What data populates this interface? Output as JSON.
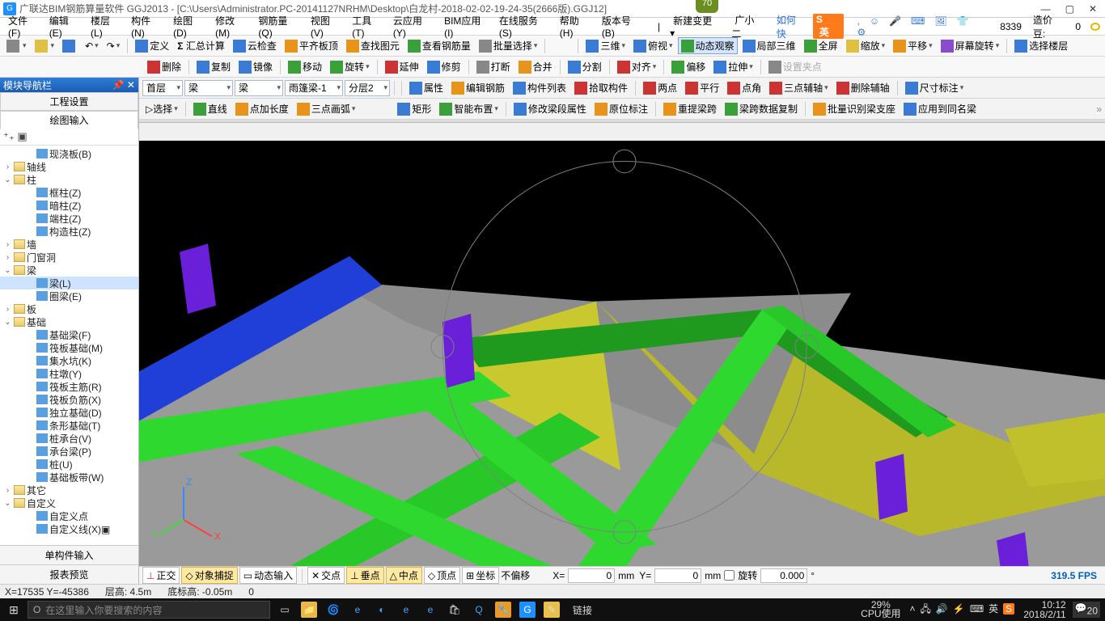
{
  "title": "广联达BIM钢筋算量软件 GGJ2013 - [C:\\Users\\Administrator.PC-20141127NRHM\\Desktop\\白龙村-2018-02-02-19-24-35(2666版).GGJ12]",
  "badge70": "70",
  "menus": [
    "文件(F)",
    "编辑(E)",
    "楼层(L)",
    "构件(N)",
    "绘图(D)",
    "修改(M)",
    "钢筋量(Q)",
    "视图(V)",
    "工具(T)",
    "云应用(Y)",
    "BIM应用(I)",
    "在线服务(S)",
    "帮助(H)",
    "版本号(B)"
  ],
  "menu_right": {
    "newchange": "新建变更",
    "user": "广小二",
    "ime": "英",
    "howto": "如何快",
    "count": "8339",
    "price_label": "造价豆:",
    "price_val": "0"
  },
  "tb1": {
    "define": "定义",
    "sumcalc": "汇总计算",
    "cloudchk": "云检查",
    "flatroof": "平齐板顶",
    "findimg": "查找图元",
    "viewsteel": "查看钢筋量",
    "batchsel": "批量选择",
    "v3d": "三维",
    "topview": "俯视",
    "dynview": "动态观察",
    "local3d": "局部三维",
    "fullscr": "全屏",
    "zoom": "缩放",
    "pan": "平移",
    "scrrot": "屏幕旋转",
    "selfloor": "选择楼层"
  },
  "tb2": {
    "del": "删除",
    "copy": "复制",
    "mirror": "镜像",
    "move": "移动",
    "rotate": "旋转",
    "extend": "延伸",
    "trim": "修剪",
    "break": "打断",
    "merge": "合并",
    "split": "分割",
    "align": "对齐",
    "offset": "偏移",
    "stretch": "拉伸",
    "setpt": "设置夹点"
  },
  "tb3": {
    "floor": "首层",
    "cat": "梁",
    "sub": "梁",
    "item": "雨篷梁-1",
    "layer": "分层2",
    "prop": "属性",
    "editrebar": "编辑钢筋",
    "complist": "构件列表",
    "pick": "拾取构件",
    "twopt": "两点",
    "parallel": "平行",
    "ptangle": "点角",
    "threeaux": "三点辅轴",
    "delaux": "删除辅轴",
    "dim": "尺寸标注"
  },
  "tb4": {
    "select": "选择",
    "line": "直线",
    "ptlen": "点加长度",
    "arc3": "三点画弧",
    "rect": "矩形",
    "smart": "智能布置",
    "editseg": "修改梁段属性",
    "origannot": "原位标注",
    "reident": "重提梁跨",
    "copyspan": "梁跨数据复制",
    "batchident": "批量识别梁支座",
    "applyall": "应用到同名梁"
  },
  "left": {
    "title": "模块导航栏",
    "tab1": "工程设置",
    "tab2": "绘图输入",
    "nodes": [
      {
        "d": 2,
        "t": "",
        "ic": "leaf-ic",
        "lbl": "现浇板(B)"
      },
      {
        "d": 0,
        "t": "›",
        "ic": "fold",
        "lbl": "轴线"
      },
      {
        "d": 0,
        "t": "⌄",
        "ic": "fold",
        "lbl": "柱"
      },
      {
        "d": 2,
        "t": "",
        "ic": "leaf-ic",
        "lbl": "框柱(Z)"
      },
      {
        "d": 2,
        "t": "",
        "ic": "leaf-ic",
        "lbl": "暗柱(Z)"
      },
      {
        "d": 2,
        "t": "",
        "ic": "leaf-ic",
        "lbl": "端柱(Z)"
      },
      {
        "d": 2,
        "t": "",
        "ic": "leaf-ic",
        "lbl": "构造柱(Z)"
      },
      {
        "d": 0,
        "t": "›",
        "ic": "fold",
        "lbl": "墙"
      },
      {
        "d": 0,
        "t": "›",
        "ic": "fold",
        "lbl": "门窗洞"
      },
      {
        "d": 0,
        "t": "⌄",
        "ic": "fold",
        "lbl": "梁"
      },
      {
        "d": 2,
        "t": "",
        "ic": "leaf-ic",
        "lbl": "梁(L)",
        "sel": true
      },
      {
        "d": 2,
        "t": "",
        "ic": "leaf-ic",
        "lbl": "圈梁(E)"
      },
      {
        "d": 0,
        "t": "›",
        "ic": "fold",
        "lbl": "板"
      },
      {
        "d": 0,
        "t": "⌄",
        "ic": "fold",
        "lbl": "基础"
      },
      {
        "d": 2,
        "t": "",
        "ic": "leaf-ic",
        "lbl": "基础梁(F)"
      },
      {
        "d": 2,
        "t": "",
        "ic": "leaf-ic",
        "lbl": "筏板基础(M)"
      },
      {
        "d": 2,
        "t": "",
        "ic": "leaf-ic",
        "lbl": "集水坑(K)"
      },
      {
        "d": 2,
        "t": "",
        "ic": "leaf-ic",
        "lbl": "柱墩(Y)"
      },
      {
        "d": 2,
        "t": "",
        "ic": "leaf-ic",
        "lbl": "筏板主筋(R)"
      },
      {
        "d": 2,
        "t": "",
        "ic": "leaf-ic",
        "lbl": "筏板负筋(X)"
      },
      {
        "d": 2,
        "t": "",
        "ic": "leaf-ic",
        "lbl": "独立基础(D)"
      },
      {
        "d": 2,
        "t": "",
        "ic": "leaf-ic",
        "lbl": "条形基础(T)"
      },
      {
        "d": 2,
        "t": "",
        "ic": "leaf-ic",
        "lbl": "桩承台(V)"
      },
      {
        "d": 2,
        "t": "",
        "ic": "leaf-ic",
        "lbl": "承台梁(P)"
      },
      {
        "d": 2,
        "t": "",
        "ic": "leaf-ic",
        "lbl": "桩(U)"
      },
      {
        "d": 2,
        "t": "",
        "ic": "leaf-ic",
        "lbl": "基础板带(W)"
      },
      {
        "d": 0,
        "t": "›",
        "ic": "fold",
        "lbl": "其它"
      },
      {
        "d": 0,
        "t": "⌄",
        "ic": "fold",
        "lbl": "自定义"
      },
      {
        "d": 2,
        "t": "",
        "ic": "leaf-ic",
        "lbl": "自定义点"
      },
      {
        "d": 2,
        "t": "",
        "ic": "leaf-ic",
        "lbl": "自定义线(X)▣"
      }
    ],
    "bottom1": "单构件输入",
    "bottom2": "报表预览"
  },
  "opt": {
    "ortho": "正交",
    "osnap": "对象捕捉",
    "dyninput": "动态输入",
    "inter": "交点",
    "perp": "垂点",
    "mid": "中点",
    "vertex": "顶点",
    "coord": "坐标",
    "offset_mode": "不偏移",
    "x": "X=",
    "xv": "0",
    "mm": "mm",
    "y": "Y=",
    "yv": "0",
    "rot": "旋转",
    "rotv": "0.000",
    "deg": "°",
    "fps": "319.5 FPS"
  },
  "status": {
    "xy": "X=17535 Y=-45386",
    "fh": "层高: 4.5m",
    "bh": "底标高: -0.05m",
    "o": "0"
  },
  "taskbar": {
    "search_ph": "在这里输入你要搜索的内容",
    "link": "链接",
    "cpu": "29%",
    "cpu_l": "CPU使用",
    "ime": "英",
    "time": "10:12",
    "date": "2018/2/11",
    "notif": "20"
  },
  "colors": {
    "slab": "#9a9a9a",
    "beam_g": "#2fd82f",
    "beam_dg": "#1f9a1f",
    "col": "#6a1fd8",
    "wall": "#c9c92f",
    "blue": "#1f3fd8",
    "orbit": "#808080"
  }
}
